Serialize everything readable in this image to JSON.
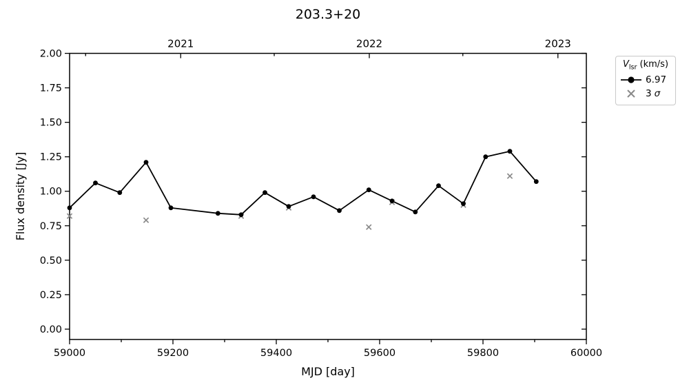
{
  "chart": {
    "title": "203.3+20",
    "xlabel": "MJD [day]",
    "ylabel": "Flux density [Jy]"
  },
  "legend": {
    "title_var": "V",
    "title_sub": "lsr",
    "title_rest": " (km/s)",
    "entry1_label": "6.97",
    "entry2_num": "3",
    "entry2_sym": "σ"
  },
  "chart_data": {
    "type": "line",
    "title": "203.3+20",
    "xlabel": "MJD [day]",
    "ylabel": "Flux density [Jy]",
    "xlim": [
      59000,
      60000
    ],
    "ylim": [
      -0.075,
      2.0
    ],
    "grid": false,
    "x_ticks": {
      "values": [
        59000,
        59200,
        59400,
        59600,
        59800,
        60000
      ],
      "labels": [
        "59000",
        "59200",
        "59400",
        "59600",
        "59800",
        "60000"
      ]
    },
    "x_minor_ticks": [
      59100,
      59300,
      59500,
      59700,
      59900
    ],
    "y_ticks": {
      "values": [
        0.0,
        0.25,
        0.5,
        0.75,
        1.0,
        1.25,
        1.5,
        1.75,
        2.0
      ],
      "labels": [
        "0.00",
        "0.25",
        "0.50",
        "0.75",
        "1.00",
        "1.25",
        "1.50",
        "1.75",
        "2.00"
      ]
    },
    "top_axis_ticks": {
      "values": [
        59215,
        59580,
        59945
      ],
      "labels": [
        "2021",
        "2022",
        "2023"
      ]
    },
    "top_axis_minor_ticks": [
      59031,
      59396,
      59761
    ],
    "legend": {
      "title": "Vlsr (km/s)",
      "entries": [
        "6.97",
        "3 σ"
      ],
      "position": "outside upper right"
    },
    "series": [
      {
        "name": "3 σ",
        "type": "scatter",
        "marker": "x",
        "color": "#8a8a8a",
        "points": [
          [
            59000,
            0.82
          ],
          [
            59148,
            0.79
          ],
          [
            59332,
            0.82
          ],
          [
            59424,
            0.88
          ],
          [
            59579,
            0.74
          ],
          [
            59624,
            0.92
          ],
          [
            59762,
            0.9
          ],
          [
            59852,
            1.11
          ]
        ]
      },
      {
        "name": "6.97",
        "type": "line+markers",
        "marker": "circle",
        "color": "#000000",
        "points": [
          [
            59000,
            0.88
          ],
          [
            59050,
            1.06
          ],
          [
            59097,
            0.99
          ],
          [
            59148,
            1.21
          ],
          [
            59196,
            0.88
          ],
          [
            59287,
            0.84
          ],
          [
            59332,
            0.83
          ],
          [
            59378,
            0.99
          ],
          [
            59424,
            0.89
          ],
          [
            59472,
            0.96
          ],
          [
            59522,
            0.86
          ],
          [
            59579,
            1.01
          ],
          [
            59624,
            0.93
          ],
          [
            59669,
            0.85
          ],
          [
            59714,
            1.04
          ],
          [
            59762,
            0.91
          ],
          [
            59805,
            1.25
          ],
          [
            59852,
            1.29
          ],
          [
            59903,
            1.07
          ]
        ]
      }
    ]
  }
}
